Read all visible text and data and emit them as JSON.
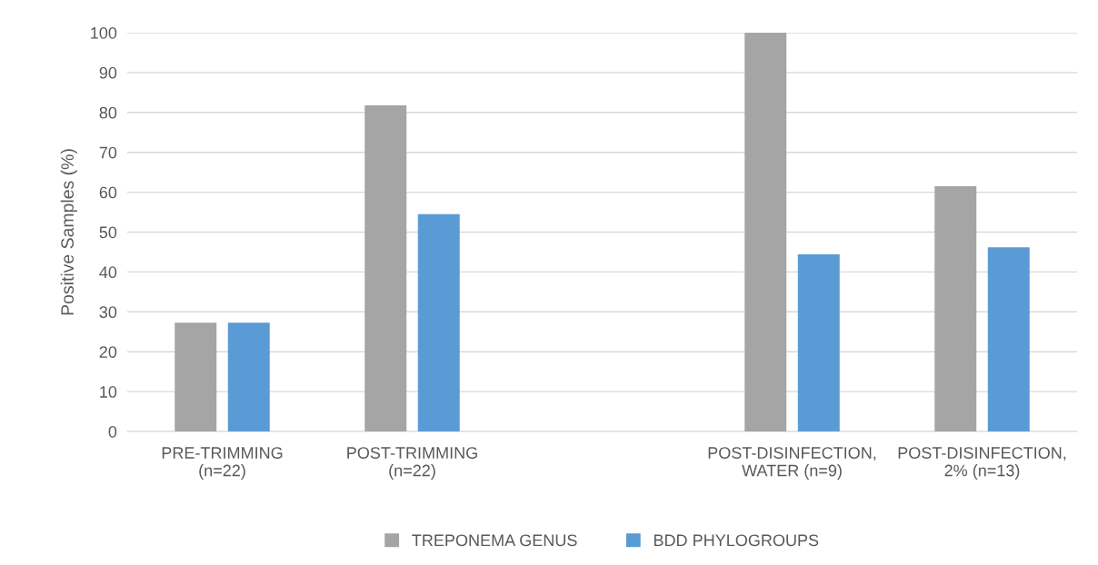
{
  "chart_data": {
    "type": "bar",
    "ylabel": "Positive Samples (%)",
    "categories": [
      "PRE-TRIMMING\n(n=22)",
      "POST-TRIMMING\n(n=22)",
      null,
      "POST-DISINFECTION,\nWATER (n=9)",
      "POST-DISINFECTION,\n2% (n=13)"
    ],
    "series": [
      {
        "name": "TREPONEMA GENUS",
        "color": "#a5a5a5",
        "values": [
          27.3,
          81.8,
          null,
          100,
          61.5
        ]
      },
      {
        "name": "BDD PHYLOGROUPS",
        "color": "#5b9bd5",
        "values": [
          27.3,
          54.5,
          null,
          44.4,
          46.2
        ]
      }
    ],
    "ylim": [
      0,
      100
    ],
    "yticks": [
      0,
      10,
      20,
      30,
      40,
      50,
      60,
      70,
      80,
      90,
      100
    ],
    "grid": "y",
    "legend": "bottom"
  }
}
